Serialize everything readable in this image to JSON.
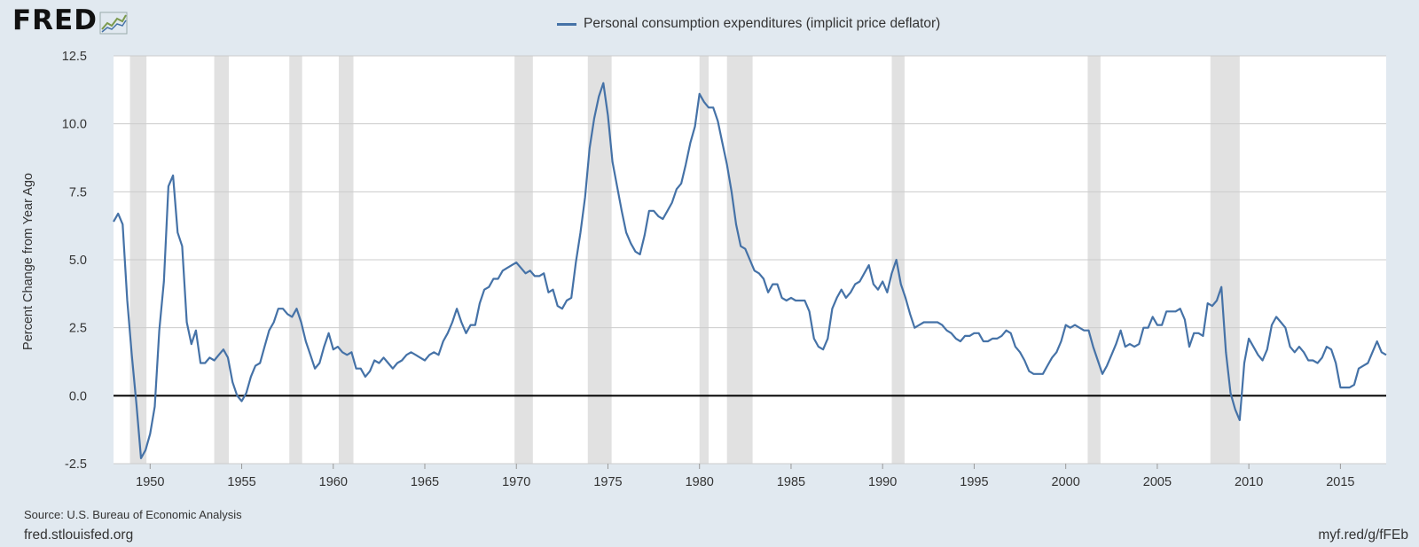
{
  "brand": {
    "logo_text": "FRED",
    "logo_icon": "fred-chart-icon"
  },
  "colors": {
    "background": "#e1e9f0",
    "plot_bg": "#ffffff",
    "series": "#4572a7",
    "recession": "#e1e1e1",
    "grid": "#cccccc",
    "zero_line": "#000000"
  },
  "footer": {
    "source": "Source: U.S. Bureau of Economic Analysis",
    "site": "fred.stlouisfed.org",
    "short_link": "myf.red/g/fFEb"
  },
  "chart_data": {
    "type": "line",
    "title": "",
    "xlabel": "",
    "ylabel": "Percent Change from Year Ago",
    "xlim": [
      1948.0,
      2017.5
    ],
    "ylim": [
      -2.5,
      12.5
    ],
    "yticks": [
      -2.5,
      0.0,
      2.5,
      5.0,
      7.5,
      10.0,
      12.5
    ],
    "ytick_labels": [
      "-2.5",
      "0.0",
      "2.5",
      "5.0",
      "7.5",
      "10.0",
      "12.5"
    ],
    "xticks": [
      1950,
      1955,
      1960,
      1965,
      1970,
      1975,
      1980,
      1985,
      1990,
      1995,
      2000,
      2005,
      2010,
      2015
    ],
    "xtick_labels": [
      "1950",
      "1955",
      "1960",
      "1965",
      "1970",
      "1975",
      "1980",
      "1985",
      "1990",
      "1995",
      "2000",
      "2005",
      "2010",
      "2015"
    ],
    "grid": true,
    "legend_position": "top-center",
    "recessions": [
      [
        1948.9,
        1949.8
      ],
      [
        1953.5,
        1954.3
      ],
      [
        1957.6,
        1958.3
      ],
      [
        1960.3,
        1961.1
      ],
      [
        1969.9,
        1970.9
      ],
      [
        1973.9,
        1975.2
      ],
      [
        1980.0,
        1980.5
      ],
      [
        1981.5,
        1982.9
      ],
      [
        1990.5,
        1991.2
      ],
      [
        2001.2,
        2001.9
      ],
      [
        2007.9,
        2009.5
      ]
    ],
    "series": [
      {
        "name": "Personal consumption expenditures (implicit price deflator)",
        "color": "#4572a7",
        "points": [
          [
            1948.0,
            6.4
          ],
          [
            1948.25,
            6.7
          ],
          [
            1948.5,
            6.3
          ],
          [
            1948.75,
            3.5
          ],
          [
            1949.0,
            1.5
          ],
          [
            1949.25,
            -0.3
          ],
          [
            1949.5,
            -2.3
          ],
          [
            1949.75,
            -2.0
          ],
          [
            1950.0,
            -1.4
          ],
          [
            1950.25,
            -0.4
          ],
          [
            1950.5,
            2.4
          ],
          [
            1950.75,
            4.2
          ],
          [
            1951.0,
            7.7
          ],
          [
            1951.25,
            8.1
          ],
          [
            1951.5,
            6.0
          ],
          [
            1951.75,
            5.5
          ],
          [
            1952.0,
            2.7
          ],
          [
            1952.25,
            1.9
          ],
          [
            1952.5,
            2.4
          ],
          [
            1952.75,
            1.2
          ],
          [
            1953.0,
            1.2
          ],
          [
            1953.25,
            1.4
          ],
          [
            1953.5,
            1.3
          ],
          [
            1953.75,
            1.5
          ],
          [
            1954.0,
            1.7
          ],
          [
            1954.25,
            1.4
          ],
          [
            1954.5,
            0.5
          ],
          [
            1954.75,
            0.0
          ],
          [
            1955.0,
            -0.2
          ],
          [
            1955.25,
            0.1
          ],
          [
            1955.5,
            0.7
          ],
          [
            1955.75,
            1.1
          ],
          [
            1956.0,
            1.2
          ],
          [
            1956.25,
            1.8
          ],
          [
            1956.5,
            2.4
          ],
          [
            1956.75,
            2.7
          ],
          [
            1957.0,
            3.2
          ],
          [
            1957.25,
            3.2
          ],
          [
            1957.5,
            3.0
          ],
          [
            1957.75,
            2.9
          ],
          [
            1958.0,
            3.2
          ],
          [
            1958.25,
            2.7
          ],
          [
            1958.5,
            2.0
          ],
          [
            1958.75,
            1.5
          ],
          [
            1959.0,
            1.0
          ],
          [
            1959.25,
            1.2
          ],
          [
            1959.5,
            1.8
          ],
          [
            1959.75,
            2.3
          ],
          [
            1960.0,
            1.7
          ],
          [
            1960.25,
            1.8
          ],
          [
            1960.5,
            1.6
          ],
          [
            1960.75,
            1.5
          ],
          [
            1961.0,
            1.6
          ],
          [
            1961.25,
            1.0
          ],
          [
            1961.5,
            1.0
          ],
          [
            1961.75,
            0.7
          ],
          [
            1962.0,
            0.9
          ],
          [
            1962.25,
            1.3
          ],
          [
            1962.5,
            1.2
          ],
          [
            1962.75,
            1.4
          ],
          [
            1963.0,
            1.2
          ],
          [
            1963.25,
            1.0
          ],
          [
            1963.5,
            1.2
          ],
          [
            1963.75,
            1.3
          ],
          [
            1964.0,
            1.5
          ],
          [
            1964.25,
            1.6
          ],
          [
            1964.5,
            1.5
          ],
          [
            1964.75,
            1.4
          ],
          [
            1965.0,
            1.3
          ],
          [
            1965.25,
            1.5
          ],
          [
            1965.5,
            1.6
          ],
          [
            1965.75,
            1.5
          ],
          [
            1966.0,
            2.0
          ],
          [
            1966.25,
            2.3
          ],
          [
            1966.5,
            2.7
          ],
          [
            1966.75,
            3.2
          ],
          [
            1967.0,
            2.7
          ],
          [
            1967.25,
            2.3
          ],
          [
            1967.5,
            2.6
          ],
          [
            1967.75,
            2.6
          ],
          [
            1968.0,
            3.4
          ],
          [
            1968.25,
            3.9
          ],
          [
            1968.5,
            4.0
          ],
          [
            1968.75,
            4.3
          ],
          [
            1969.0,
            4.3
          ],
          [
            1969.25,
            4.6
          ],
          [
            1969.5,
            4.7
          ],
          [
            1969.75,
            4.8
          ],
          [
            1970.0,
            4.9
          ],
          [
            1970.25,
            4.7
          ],
          [
            1970.5,
            4.5
          ],
          [
            1970.75,
            4.6
          ],
          [
            1971.0,
            4.4
          ],
          [
            1971.25,
            4.4
          ],
          [
            1971.5,
            4.5
          ],
          [
            1971.75,
            3.8
          ],
          [
            1972.0,
            3.9
          ],
          [
            1972.25,
            3.3
          ],
          [
            1972.5,
            3.2
          ],
          [
            1972.75,
            3.5
          ],
          [
            1973.0,
            3.6
          ],
          [
            1973.25,
            4.9
          ],
          [
            1973.5,
            6.0
          ],
          [
            1973.75,
            7.3
          ],
          [
            1974.0,
            9.1
          ],
          [
            1974.25,
            10.2
          ],
          [
            1974.5,
            11.0
          ],
          [
            1974.75,
            11.5
          ],
          [
            1975.0,
            10.3
          ],
          [
            1975.25,
            8.6
          ],
          [
            1975.5,
            7.7
          ],
          [
            1975.75,
            6.8
          ],
          [
            1976.0,
            6.0
          ],
          [
            1976.25,
            5.6
          ],
          [
            1976.5,
            5.3
          ],
          [
            1976.75,
            5.2
          ],
          [
            1977.0,
            5.9
          ],
          [
            1977.25,
            6.8
          ],
          [
            1977.5,
            6.8
          ],
          [
            1977.75,
            6.6
          ],
          [
            1978.0,
            6.5
          ],
          [
            1978.25,
            6.8
          ],
          [
            1978.5,
            7.1
          ],
          [
            1978.75,
            7.6
          ],
          [
            1979.0,
            7.8
          ],
          [
            1979.25,
            8.5
          ],
          [
            1979.5,
            9.3
          ],
          [
            1979.75,
            9.9
          ],
          [
            1980.0,
            11.1
          ],
          [
            1980.25,
            10.8
          ],
          [
            1980.5,
            10.6
          ],
          [
            1980.75,
            10.6
          ],
          [
            1981.0,
            10.1
          ],
          [
            1981.25,
            9.3
          ],
          [
            1981.5,
            8.5
          ],
          [
            1981.75,
            7.5
          ],
          [
            1982.0,
            6.3
          ],
          [
            1982.25,
            5.5
          ],
          [
            1982.5,
            5.4
          ],
          [
            1982.75,
            5.0
          ],
          [
            1983.0,
            4.6
          ],
          [
            1983.25,
            4.5
          ],
          [
            1983.5,
            4.3
          ],
          [
            1983.75,
            3.8
          ],
          [
            1984.0,
            4.1
          ],
          [
            1984.25,
            4.1
          ],
          [
            1984.5,
            3.6
          ],
          [
            1984.75,
            3.5
          ],
          [
            1985.0,
            3.6
          ],
          [
            1985.25,
            3.5
          ],
          [
            1985.5,
            3.5
          ],
          [
            1985.75,
            3.5
          ],
          [
            1986.0,
            3.1
          ],
          [
            1986.25,
            2.1
          ],
          [
            1986.5,
            1.8
          ],
          [
            1986.75,
            1.7
          ],
          [
            1987.0,
            2.1
          ],
          [
            1987.25,
            3.2
          ],
          [
            1987.5,
            3.6
          ],
          [
            1987.75,
            3.9
          ],
          [
            1988.0,
            3.6
          ],
          [
            1988.25,
            3.8
          ],
          [
            1988.5,
            4.1
          ],
          [
            1988.75,
            4.2
          ],
          [
            1989.0,
            4.5
          ],
          [
            1989.25,
            4.8
          ],
          [
            1989.5,
            4.1
          ],
          [
            1989.75,
            3.9
          ],
          [
            1990.0,
            4.2
          ],
          [
            1990.25,
            3.8
          ],
          [
            1990.5,
            4.5
          ],
          [
            1990.75,
            5.0
          ],
          [
            1991.0,
            4.1
          ],
          [
            1991.25,
            3.6
          ],
          [
            1991.5,
            3.0
          ],
          [
            1991.75,
            2.5
          ],
          [
            1992.0,
            2.6
          ],
          [
            1992.25,
            2.7
          ],
          [
            1992.5,
            2.7
          ],
          [
            1992.75,
            2.7
          ],
          [
            1993.0,
            2.7
          ],
          [
            1993.25,
            2.6
          ],
          [
            1993.5,
            2.4
          ],
          [
            1993.75,
            2.3
          ],
          [
            1994.0,
            2.1
          ],
          [
            1994.25,
            2.0
          ],
          [
            1994.5,
            2.2
          ],
          [
            1994.75,
            2.2
          ],
          [
            1995.0,
            2.3
          ],
          [
            1995.25,
            2.3
          ],
          [
            1995.5,
            2.0
          ],
          [
            1995.75,
            2.0
          ],
          [
            1996.0,
            2.1
          ],
          [
            1996.25,
            2.1
          ],
          [
            1996.5,
            2.2
          ],
          [
            1996.75,
            2.4
          ],
          [
            1997.0,
            2.3
          ],
          [
            1997.25,
            1.8
          ],
          [
            1997.5,
            1.6
          ],
          [
            1997.75,
            1.3
          ],
          [
            1998.0,
            0.9
          ],
          [
            1998.25,
            0.8
          ],
          [
            1998.5,
            0.8
          ],
          [
            1998.75,
            0.8
          ],
          [
            1999.0,
            1.1
          ],
          [
            1999.25,
            1.4
          ],
          [
            1999.5,
            1.6
          ],
          [
            1999.75,
            2.0
          ],
          [
            2000.0,
            2.6
          ],
          [
            2000.25,
            2.5
          ],
          [
            2000.5,
            2.6
          ],
          [
            2000.75,
            2.5
          ],
          [
            2001.0,
            2.4
          ],
          [
            2001.25,
            2.4
          ],
          [
            2001.5,
            1.8
          ],
          [
            2001.75,
            1.3
          ],
          [
            2002.0,
            0.8
          ],
          [
            2002.25,
            1.1
          ],
          [
            2002.5,
            1.5
          ],
          [
            2002.75,
            1.9
          ],
          [
            2003.0,
            2.4
          ],
          [
            2003.25,
            1.8
          ],
          [
            2003.5,
            1.9
          ],
          [
            2003.75,
            1.8
          ],
          [
            2004.0,
            1.9
          ],
          [
            2004.25,
            2.5
          ],
          [
            2004.5,
            2.5
          ],
          [
            2004.75,
            2.9
          ],
          [
            2005.0,
            2.6
          ],
          [
            2005.25,
            2.6
          ],
          [
            2005.5,
            3.1
          ],
          [
            2005.75,
            3.1
          ],
          [
            2006.0,
            3.1
          ],
          [
            2006.25,
            3.2
          ],
          [
            2006.5,
            2.8
          ],
          [
            2006.75,
            1.8
          ],
          [
            2007.0,
            2.3
          ],
          [
            2007.25,
            2.3
          ],
          [
            2007.5,
            2.2
          ],
          [
            2007.75,
            3.4
          ],
          [
            2008.0,
            3.3
          ],
          [
            2008.25,
            3.5
          ],
          [
            2008.5,
            4.0
          ],
          [
            2008.75,
            1.6
          ],
          [
            2009.0,
            0.1
          ],
          [
            2009.25,
            -0.5
          ],
          [
            2009.5,
            -0.9
          ],
          [
            2009.75,
            1.2
          ],
          [
            2010.0,
            2.1
          ],
          [
            2010.25,
            1.8
          ],
          [
            2010.5,
            1.5
          ],
          [
            2010.75,
            1.3
          ],
          [
            2011.0,
            1.7
          ],
          [
            2011.25,
            2.6
          ],
          [
            2011.5,
            2.9
          ],
          [
            2011.75,
            2.7
          ],
          [
            2012.0,
            2.5
          ],
          [
            2012.25,
            1.8
          ],
          [
            2012.5,
            1.6
          ],
          [
            2012.75,
            1.8
          ],
          [
            2013.0,
            1.6
          ],
          [
            2013.25,
            1.3
          ],
          [
            2013.5,
            1.3
          ],
          [
            2013.75,
            1.2
          ],
          [
            2014.0,
            1.4
          ],
          [
            2014.25,
            1.8
          ],
          [
            2014.5,
            1.7
          ],
          [
            2014.75,
            1.2
          ],
          [
            2015.0,
            0.3
          ],
          [
            2015.25,
            0.3
          ],
          [
            2015.5,
            0.3
          ],
          [
            2015.75,
            0.4
          ],
          [
            2016.0,
            1.0
          ],
          [
            2016.25,
            1.1
          ],
          [
            2016.5,
            1.2
          ],
          [
            2016.75,
            1.6
          ],
          [
            2017.0,
            2.0
          ],
          [
            2017.25,
            1.6
          ],
          [
            2017.5,
            1.5
          ]
        ]
      }
    ]
  }
}
